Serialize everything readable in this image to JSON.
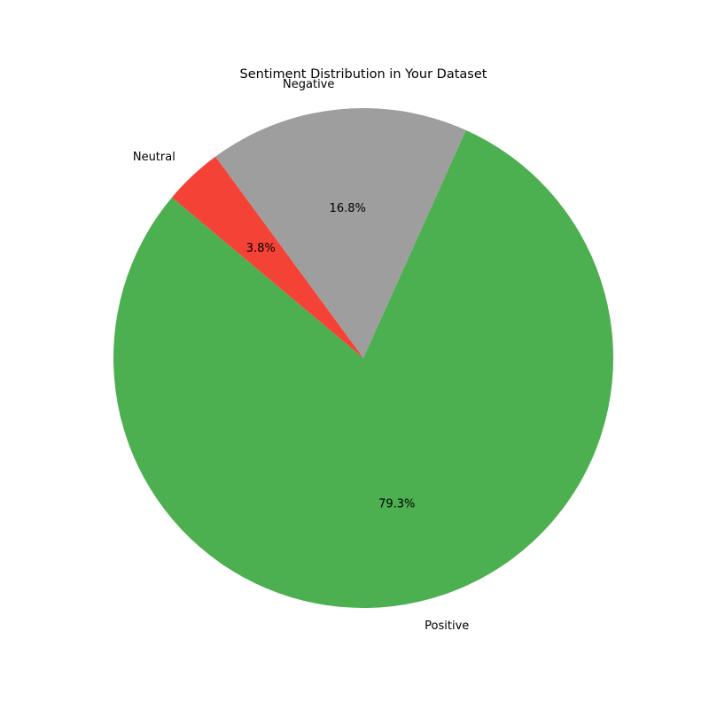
{
  "chart_data": {
    "type": "pie",
    "title": "Sentiment Distribution in Your Dataset",
    "slices": [
      {
        "label": "Positive",
        "percent": 79.3,
        "percent_label": "79.3%",
        "color": "#4caf50"
      },
      {
        "label": "Negative",
        "percent": 16.8,
        "percent_label": "16.8%",
        "color": "#9e9e9e"
      },
      {
        "label": "Neutral",
        "percent": 3.8,
        "percent_label": "3.8%",
        "color": "#f44336"
      }
    ],
    "start_angle_degrees": 140,
    "direction": "counterclockwise",
    "legend": "none"
  }
}
